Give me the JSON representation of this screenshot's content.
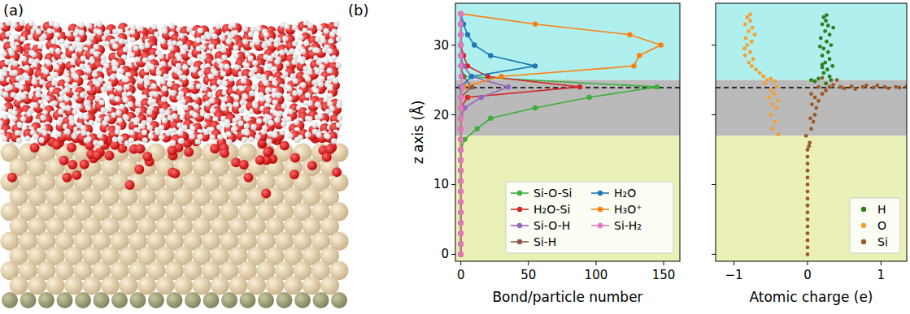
{
  "panel_labels": [
    "(a)",
    "(b)"
  ],
  "chart_data": [
    {
      "type": "line",
      "orientation": "horizontal",
      "xlabel": "Bond/particle number",
      "ylabel": "z axis (Å)",
      "xlim": [
        -4,
        162
      ],
      "xticks": [
        0,
        50,
        100,
        150
      ],
      "ylim": [
        -1,
        36
      ],
      "yticks": [
        0,
        10,
        20,
        30
      ],
      "regions": [
        {
          "from": 25,
          "to": 36,
          "color": "#aff0ee"
        },
        {
          "from": 17,
          "to": 25,
          "color": "#bababa"
        },
        {
          "from": -1,
          "to": 17,
          "color": "#eaf0b6"
        }
      ],
      "hline": 23.9,
      "legend": "lower right",
      "marker": "o",
      "y": [
        0,
        1.5,
        3,
        4.5,
        6,
        7.5,
        9,
        10.5,
        12,
        13.5,
        15,
        16.5,
        18,
        19.5,
        21,
        22.5,
        24,
        25.5,
        27,
        28.5,
        30,
        31.5,
        33,
        34.5
      ],
      "series": [
        {
          "name": "Si-O-Si",
          "color": "#3cae3c",
          "values": [
            0,
            0,
            0,
            0,
            0,
            0,
            0,
            0,
            0,
            0,
            0,
            3,
            12,
            22,
            55,
            95,
            145,
            2,
            0,
            0,
            0,
            0,
            0,
            0
          ]
        },
        {
          "name": "H₂O-Si",
          "color": "#d62728",
          "values": [
            0,
            0,
            0,
            0,
            0,
            0,
            0,
            0,
            0,
            0,
            0,
            0,
            0,
            0,
            0,
            5,
            88,
            20,
            5,
            2,
            0,
            0,
            0,
            0
          ]
        },
        {
          "name": "Si-O-H",
          "color": "#9467bd",
          "values": [
            0,
            0,
            0,
            0,
            0,
            0,
            0,
            0,
            0,
            0,
            0,
            0,
            0,
            0,
            3,
            15,
            35,
            8,
            2,
            0,
            0,
            0,
            0,
            0
          ]
        },
        {
          "name": "Si-H",
          "color": "#8c564b",
          "values": [
            0,
            0,
            0,
            0,
            0,
            0,
            0,
            0,
            0,
            0,
            0,
            0,
            0,
            0,
            0,
            0,
            8,
            2,
            0,
            0,
            0,
            0,
            0,
            0
          ]
        },
        {
          "name": "H₂O",
          "color": "#1f77b4",
          "values": [
            0,
            0,
            0,
            0,
            0,
            0,
            0,
            0,
            0,
            0,
            0,
            0,
            0,
            0,
            0,
            0,
            0,
            8,
            55,
            22,
            10,
            5,
            2,
            0
          ]
        },
        {
          "name": "H₃O⁺",
          "color": "#ff7f0e",
          "values": [
            0,
            0,
            0,
            0,
            0,
            0,
            0,
            0,
            0,
            0,
            0,
            0,
            0,
            0,
            0,
            0,
            2,
            30,
            128,
            132,
            148,
            125,
            55,
            0
          ]
        },
        {
          "name": "Si-H₂",
          "color": "#e377c2",
          "values": [
            0,
            0,
            0,
            0,
            0,
            0,
            0,
            0,
            0,
            0,
            0,
            0,
            0,
            0,
            0,
            0,
            1,
            0,
            0,
            0,
            0,
            0,
            0,
            0
          ]
        }
      ]
    },
    {
      "type": "scatter",
      "xlabel": "Atomic charge (e)",
      "xlim": [
        -1.25,
        1.35
      ],
      "xticks": [
        {
          "value": -1,
          "label": "−1"
        },
        0,
        1
      ],
      "ylim": [
        -1,
        36
      ],
      "yticks": [
        0,
        10,
        20,
        30
      ],
      "tick_labels": "x",
      "regions": [
        {
          "from": 25,
          "to": 36,
          "color": "#aff0ee"
        },
        {
          "from": 17,
          "to": 25,
          "color": "#bababa"
        },
        {
          "from": -1,
          "to": 17,
          "color": "#eaf0b6"
        }
      ],
      "hline": 23.9,
      "legend": "lower right",
      "marker": "o",
      "series": [
        {
          "name": "H",
          "color": "#2e7d1e",
          "x": [
            0.22,
            0.25,
            0.2,
            0.28,
            0.24,
            0.3,
            0.18,
            0.26,
            0.32,
            0.22,
            0.28,
            0.2,
            0.3,
            0.24,
            0.34,
            0.2,
            0.27,
            0.22,
            0.3,
            0.15,
            0.05,
            0.1,
            0.32,
            0.25,
            0.35,
            0.17,
            0.26,
            0.2
          ],
          "values": [
            34,
            33.5,
            33,
            32.8,
            32,
            31.5,
            31,
            30.5,
            30,
            29.5,
            29,
            28.5,
            28,
            27.5,
            27,
            26.8,
            26.5,
            26,
            25.5,
            25.2,
            25,
            24.8,
            25,
            24.5,
            32.5,
            29.8,
            34.3,
            27.2
          ]
        },
        {
          "name": "O",
          "color": "#f5a030",
          "x": [
            -0.82,
            -0.78,
            -0.85,
            -0.75,
            -0.8,
            -0.84,
            -0.76,
            -0.82,
            -0.78,
            -0.85,
            -0.74,
            -0.8,
            -0.76,
            -0.7,
            -0.65,
            -0.6,
            -0.5,
            -0.55,
            -0.45,
            -0.58,
            -0.42,
            -0.5,
            -0.45,
            -0.52,
            -0.4,
            -0.48,
            -0.42,
            -0.5,
            -0.44,
            -0.48,
            -0.4,
            -0.78,
            -0.86,
            -0.72
          ],
          "values": [
            34,
            33.5,
            33,
            32.5,
            32,
            31,
            30.5,
            30,
            29,
            28.5,
            28,
            27.5,
            27,
            26.5,
            26,
            25.5,
            25.2,
            25,
            24.8,
            24.5,
            24,
            23.5,
            23,
            22.5,
            22,
            21.5,
            21,
            20,
            19,
            18,
            17.2,
            34.4,
            29.5,
            31.5
          ]
        },
        {
          "name": "Si",
          "color": "#9c5a2a",
          "x": [
            0,
            0,
            0,
            0,
            0,
            0,
            0,
            0,
            0,
            0,
            0,
            0,
            0,
            0,
            0,
            0,
            0.02,
            0.03,
            -0.02,
            0.05,
            0.08,
            0.04,
            0.1,
            0.12,
            0.06,
            0.15,
            0.1,
            0.2,
            0.05,
            0.25,
            0.15,
            0.3,
            0.45,
            0.6,
            0.75,
            0.9,
            1.05,
            1.2,
            1.35,
            0.5,
            0.8,
            1.1,
            0.35,
            0.65,
            0.95,
            1.25,
            0.4,
            0.2
          ],
          "values": [
            0,
            1,
            2,
            3,
            4,
            5,
            6,
            7,
            8,
            9,
            10,
            11,
            12,
            13,
            14,
            15,
            15.5,
            16,
            17,
            18,
            19,
            19.5,
            20,
            21,
            21.5,
            22,
            22.5,
            23,
            23,
            23.5,
            24,
            24,
            24,
            24.1,
            24,
            23.9,
            24,
            24,
            24.1,
            23.8,
            24.2,
            23.8,
            24.3,
            23.7,
            24.2,
            23.9,
            25,
            25.3
          ]
        }
      ]
    }
  ]
}
